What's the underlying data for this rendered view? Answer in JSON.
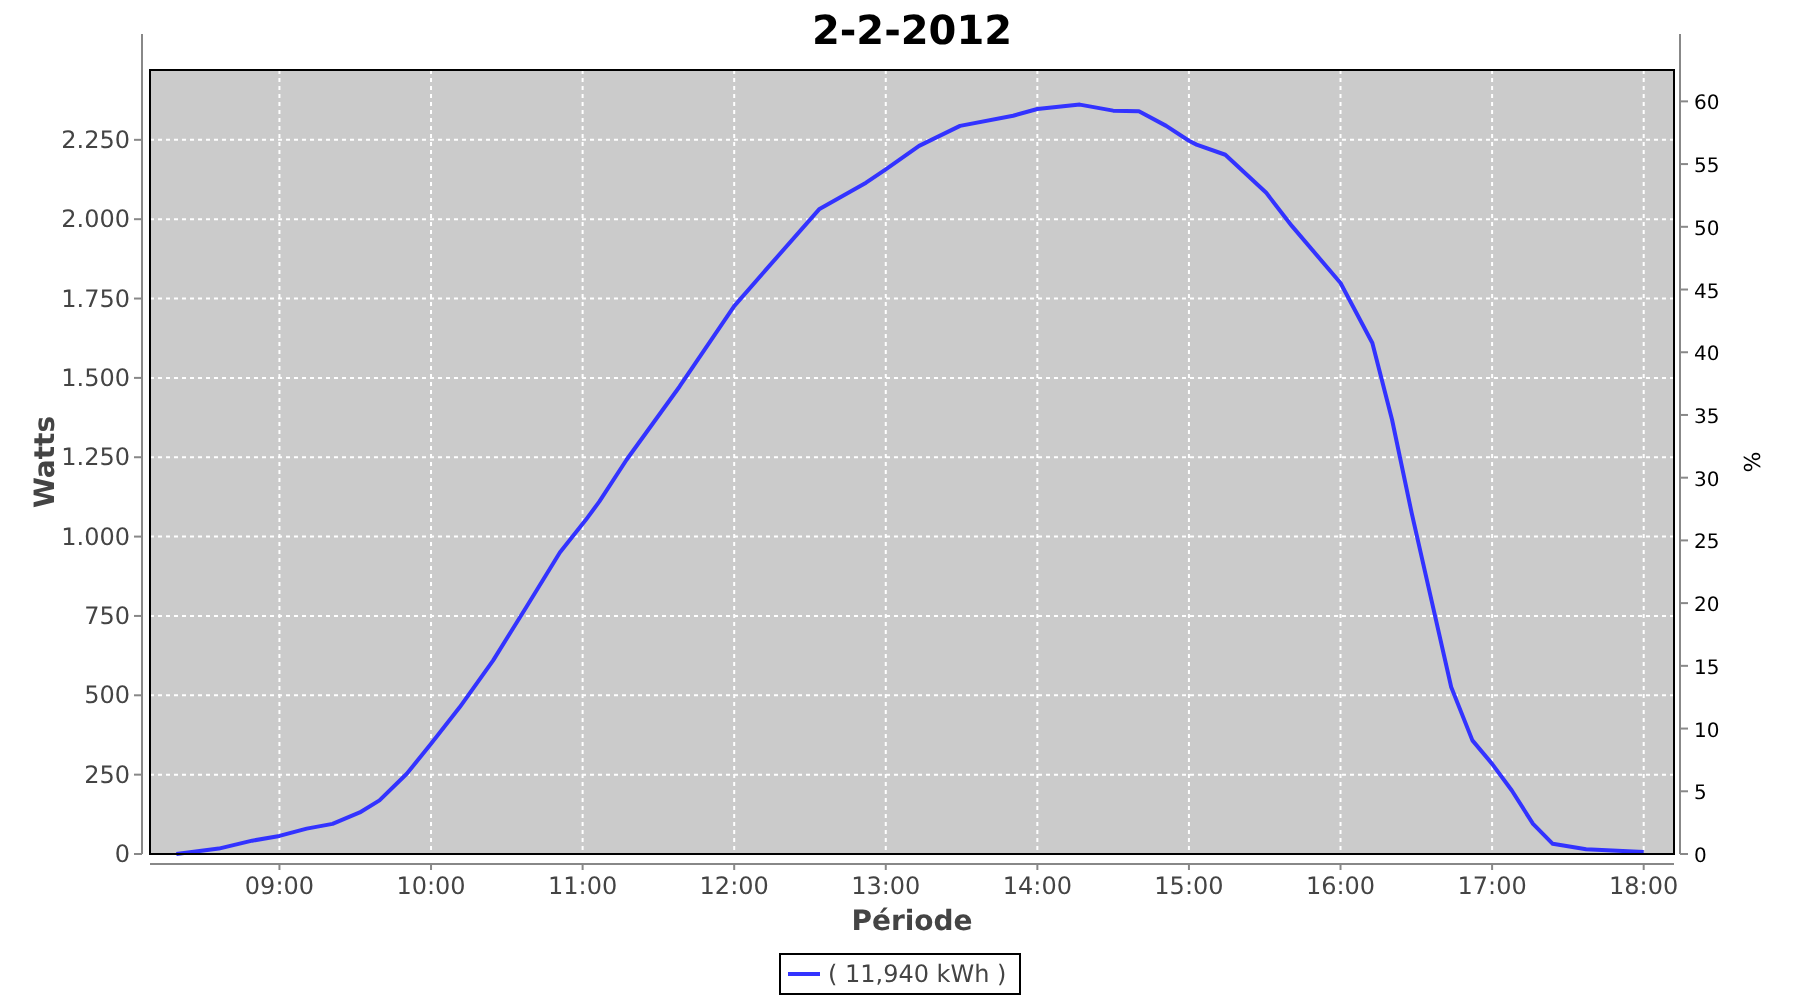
{
  "chart_data": {
    "type": "line",
    "title": "2-2-2012",
    "xlabel": "Période",
    "ylabel": "Watts",
    "y2label": "%",
    "x": [
      8.32,
      8.6,
      8.82,
      9.0,
      9.18,
      9.35,
      9.53,
      9.66,
      9.84,
      10.0,
      10.19,
      10.41,
      10.63,
      10.85,
      11.02,
      11.11,
      11.29,
      11.64,
      12.0,
      12.21,
      12.56,
      12.87,
      13.0,
      13.22,
      13.49,
      13.84,
      14.0,
      14.28,
      14.5,
      14.67,
      14.85,
      15.0,
      15.05,
      15.24,
      15.51,
      15.68,
      16.0,
      16.21,
      16.34,
      16.47,
      16.6,
      16.73,
      16.87,
      17.0,
      17.13,
      17.27,
      17.4,
      17.62,
      18.0
    ],
    "series": [
      {
        "name": "( 11,940 kWh )",
        "color": "#3333ff",
        "values": [
          0,
          17,
          42,
          57,
          80,
          95,
          131,
          169,
          253,
          347,
          463,
          610,
          779,
          950,
          1052,
          1110,
          1242,
          1473,
          1726,
          1841,
          2031,
          2115,
          2157,
          2231,
          2294,
          2326,
          2347,
          2361,
          2342,
          2340,
          2294,
          2247,
          2235,
          2203,
          2083,
          1978,
          1799,
          1610,
          1368,
          1073,
          800,
          526,
          358,
          284,
          200,
          95,
          32,
          15,
          6
        ]
      }
    ],
    "xlim": [
      8.146,
      18.2
    ],
    "xticks": [
      {
        "value": 9,
        "label": "09:00"
      },
      {
        "value": 10,
        "label": "10:00"
      },
      {
        "value": 11,
        "label": "11:00"
      },
      {
        "value": 12,
        "label": "12:00"
      },
      {
        "value": 13,
        "label": "13:00"
      },
      {
        "value": 14,
        "label": "14:00"
      },
      {
        "value": 15,
        "label": "15:00"
      },
      {
        "value": 16,
        "label": "16:00"
      },
      {
        "value": 17,
        "label": "17:00"
      },
      {
        "value": 18,
        "label": "18:00"
      }
    ],
    "ylim": [
      0,
      2470
    ],
    "yticks": [
      0,
      250,
      500,
      750,
      {
        "value": 1000,
        "label": "1.000"
      },
      {
        "value": 1250,
        "label": "1.250"
      },
      {
        "value": 1500,
        "label": "1.500"
      },
      {
        "value": 1750,
        "label": "1.750"
      },
      {
        "value": 2000,
        "label": "2.000"
      },
      {
        "value": 2250,
        "label": "2.250"
      }
    ],
    "y2lim": [
      0,
      62.5
    ],
    "y2ticks": [
      0,
      5,
      10,
      15,
      20,
      25,
      30,
      35,
      40,
      45,
      50,
      55,
      60
    ],
    "grid": true,
    "legend": "bottom",
    "line_style": "solid"
  }
}
